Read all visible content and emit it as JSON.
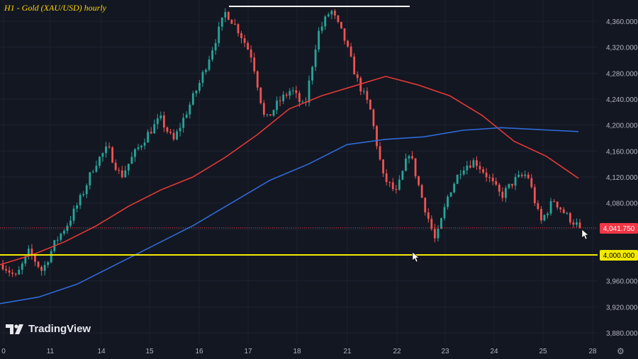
{
  "title": "H1 - Gold (XAU/USD) hourly",
  "brand": "TradingView",
  "settings_icon": "gear-icon",
  "colors": {
    "background": "#131722",
    "grid": "#1e2230",
    "up": "#26a69a",
    "down": "#ef5350",
    "ma_red": "#e53935",
    "ma_blue": "#2f6bd8",
    "support": "#f3ea00",
    "price_tag": "#f23645",
    "axis_text": "#b2b5be"
  },
  "chart_data": {
    "type": "candlestick",
    "ylim": [
      3860,
      4380
    ],
    "y_ticks": [
      "4,360.000",
      "4,320.000",
      "4,280.000",
      "4,240.000",
      "4,200.000",
      "4,160.000",
      "4,120.000",
      "4,080.000",
      "4,040.000",
      "4,000.000",
      "3,960.000",
      "3,920.000",
      "3,880.000"
    ],
    "y_tick_values": [
      4360,
      4320,
      4280,
      4240,
      4200,
      4160,
      4120,
      4080,
      4040,
      4000,
      3960,
      3920,
      3880
    ],
    "x_ticks": [
      "0",
      "11",
      "14",
      "15",
      "16",
      "17",
      "18",
      "21",
      "22",
      "23",
      "24",
      "25",
      "28"
    ],
    "current_price_label": "4,041.750",
    "current_price": 4041.75,
    "support_label": "4,000.000",
    "support_level": 4000,
    "resistance_level": 4380,
    "price_path": [
      3985,
      3965,
      4005,
      3975,
      4020,
      4050,
      4090,
      4140,
      4165,
      4120,
      4155,
      4185,
      4210,
      4175,
      4220,
      4265,
      4320,
      4375,
      4345,
      4305,
      4205,
      4235,
      4255,
      4225,
      4340,
      4378,
      4335,
      4270,
      4225,
      4120,
      4095,
      4160,
      4085,
      4020,
      4095,
      4135,
      4145,
      4120,
      4090,
      4115,
      4125,
      4050,
      4085,
      4060,
      4042
    ],
    "ma_red": [
      3985,
      4000,
      4020,
      4045,
      4075,
      4100,
      4120,
      4150,
      4185,
      4225,
      4245,
      4260,
      4275,
      4262,
      4245,
      4215,
      4175,
      4152,
      4118
    ],
    "ma_blue": [
      3925,
      3935,
      3955,
      3985,
      4015,
      4045,
      4080,
      4115,
      4140,
      4170,
      4178,
      4182,
      4192,
      4196,
      4193,
      4190
    ],
    "ma_red_period": 100,
    "ma_blue_period": 200
  }
}
